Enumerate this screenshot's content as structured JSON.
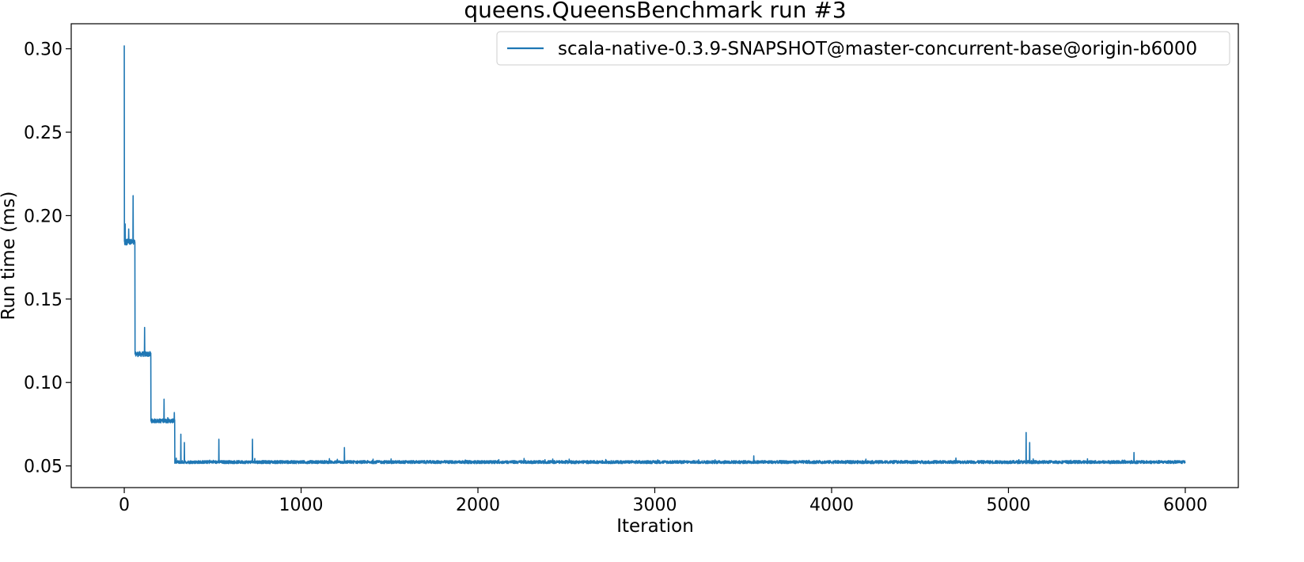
{
  "chart_data": {
    "type": "line",
    "title": "queens.QueensBenchmark run #3",
    "xlabel": "Iteration",
    "ylabel": "Run time (ms)",
    "xlim": [
      -300,
      6300
    ],
    "ylim": [
      0.037,
      0.315
    ],
    "xticks": [
      0,
      1000,
      2000,
      3000,
      4000,
      5000,
      6000
    ],
    "xtick_labels": [
      "0",
      "1000",
      "2000",
      "3000",
      "4000",
      "5000",
      "6000"
    ],
    "yticks": [
      0.05,
      0.1,
      0.15,
      0.2,
      0.25,
      0.3
    ],
    "ytick_labels": [
      "0.05",
      "0.10",
      "0.15",
      "0.20",
      "0.25",
      "0.30"
    ],
    "grid": false,
    "legend_position": "top-right",
    "series": [
      {
        "name": "scala-native-0.3.9-SNAPSHOT@master-concurrent-base@origin-b6000",
        "color": "#1f77b4",
        "phases": [
          {
            "x_start": 0,
            "x_end": 60,
            "base": 0.184,
            "noise": 0.002
          },
          {
            "x_start": 61,
            "x_end": 150,
            "base": 0.117,
            "noise": 0.0015
          },
          {
            "x_start": 151,
            "x_end": 285,
            "base": 0.077,
            "noise": 0.0012
          },
          {
            "x_start": 286,
            "x_end": 5999,
            "base": 0.0523,
            "noise": 0.0009
          }
        ],
        "spikes": [
          {
            "x": 0,
            "y": 0.302
          },
          {
            "x": 5,
            "y": 0.195
          },
          {
            "x": 25,
            "y": 0.192
          },
          {
            "x": 50,
            "y": 0.212
          },
          {
            "x": 115,
            "y": 0.133
          },
          {
            "x": 225,
            "y": 0.09
          },
          {
            "x": 283,
            "y": 0.082
          },
          {
            "x": 320,
            "y": 0.069
          },
          {
            "x": 340,
            "y": 0.064
          },
          {
            "x": 535,
            "y": 0.066
          },
          {
            "x": 725,
            "y": 0.066
          },
          {
            "x": 1245,
            "y": 0.061
          },
          {
            "x": 3560,
            "y": 0.056
          },
          {
            "x": 5100,
            "y": 0.07
          },
          {
            "x": 5120,
            "y": 0.064
          },
          {
            "x": 5710,
            "y": 0.058
          }
        ]
      }
    ]
  }
}
